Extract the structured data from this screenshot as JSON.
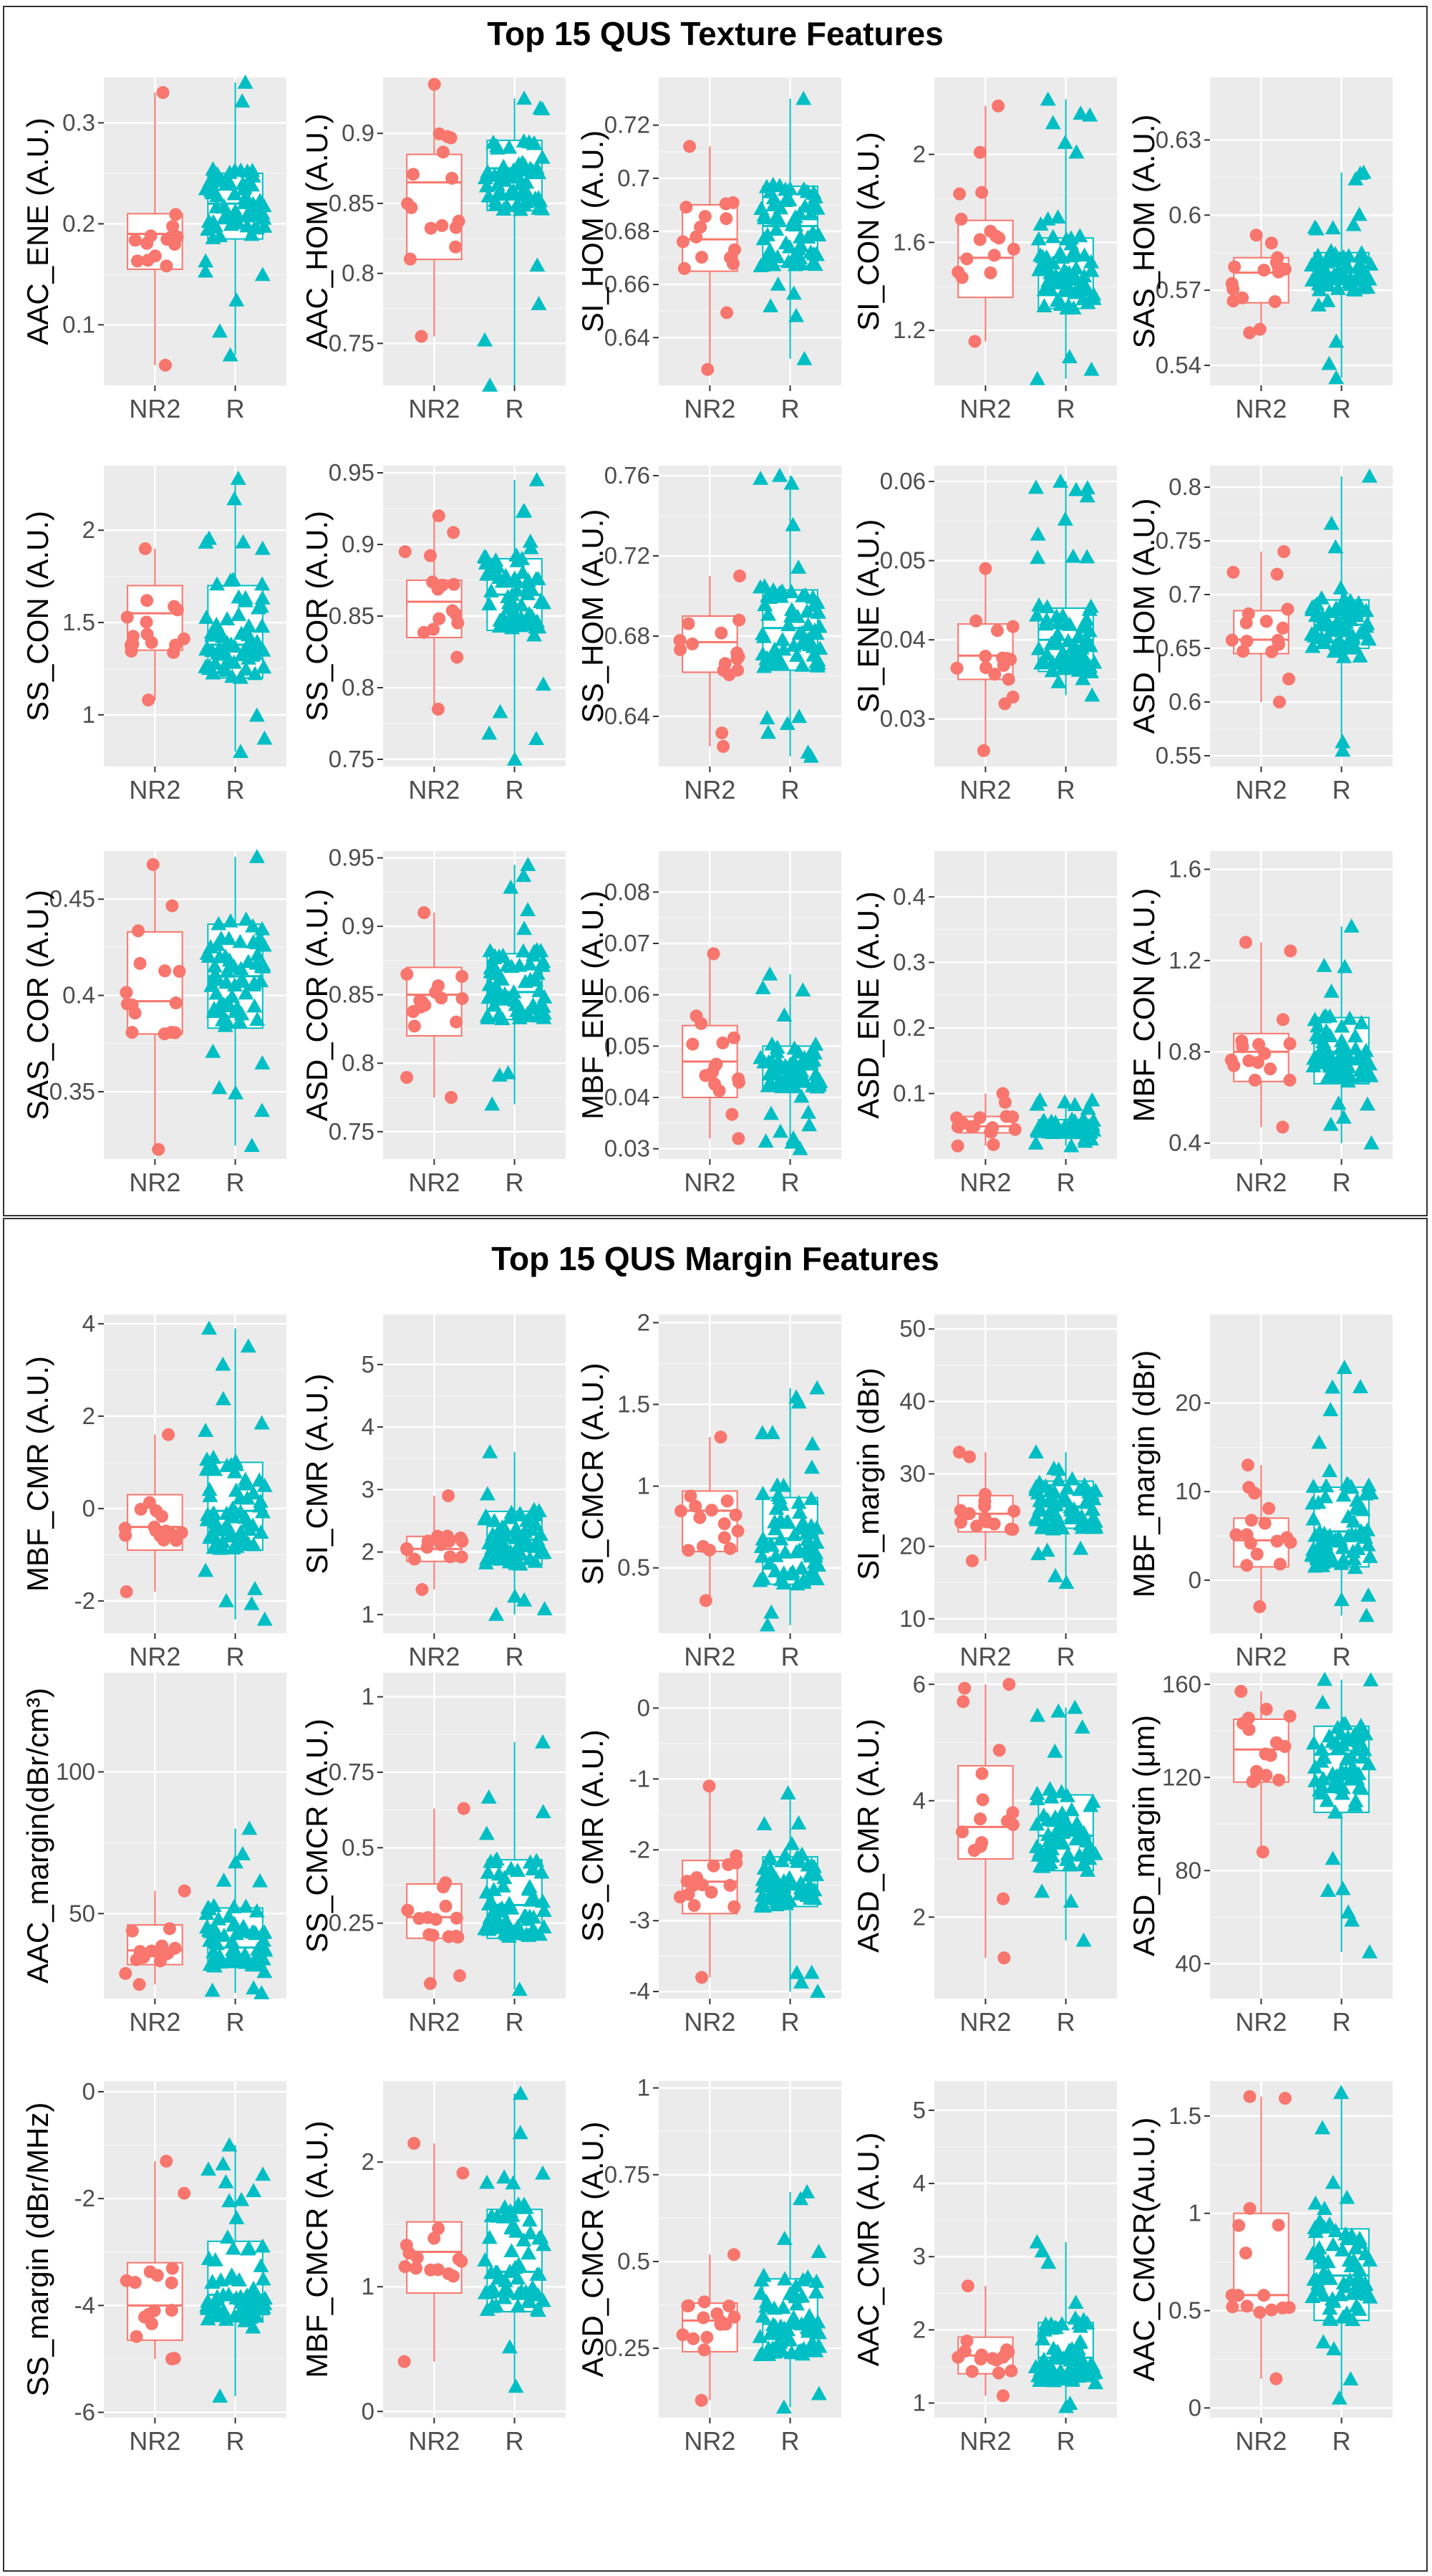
{
  "titles": {
    "texture": "Top 15 QUS Texture Features",
    "margin": "Top 15 QUS Margin Features"
  },
  "colors": {
    "NR2": "#F8766D",
    "R": "#00BFC4",
    "panel_bg": "#EBEBEB",
    "grid": "#FFFFFF"
  },
  "chart_data": [
    {
      "type": "box",
      "ylabel": "AAC_ENE (A.U.)",
      "categories": [
        "NR2",
        "R"
      ],
      "yticks": [
        0.1,
        0.2,
        0.3
      ],
      "ylim": [
        0.04,
        0.345
      ],
      "boxes": [
        {
          "group": "NR2",
          "min": 0.06,
          "q1": 0.155,
          "median": 0.19,
          "q3": 0.21,
          "max": 0.33
        },
        {
          "group": "R",
          "min": 0.07,
          "q1": 0.185,
          "median": 0.22,
          "q3": 0.25,
          "max": 0.34
        }
      ]
    },
    {
      "type": "box",
      "ylabel": "AAC_HOM (A.U.)",
      "categories": [
        "NR2",
        "R"
      ],
      "yticks": [
        0.75,
        0.8,
        0.85,
        0.9
      ],
      "ylim": [
        0.72,
        0.94
      ],
      "boxes": [
        {
          "group": "NR2",
          "min": 0.755,
          "q1": 0.81,
          "median": 0.865,
          "q3": 0.885,
          "max": 0.935
        },
        {
          "group": "R",
          "min": 0.72,
          "q1": 0.845,
          "median": 0.875,
          "q3": 0.895,
          "max": 0.925
        }
      ]
    },
    {
      "type": "box",
      "ylabel": "SI_HOM (A.U.)",
      "categories": [
        "NR2",
        "R"
      ],
      "yticks": [
        0.64,
        0.66,
        0.68,
        0.7,
        0.72
      ],
      "ylim": [
        0.622,
        0.738
      ],
      "boxes": [
        {
          "group": "NR2",
          "min": 0.628,
          "q1": 0.665,
          "median": 0.677,
          "q3": 0.69,
          "max": 0.712
        },
        {
          "group": "R",
          "min": 0.632,
          "q1": 0.667,
          "median": 0.682,
          "q3": 0.697,
          "max": 0.73
        }
      ]
    },
    {
      "type": "box",
      "ylabel": "SI_CON (A.U.)",
      "categories": [
        "NR2",
        "R"
      ],
      "yticks": [
        1.2,
        1.6,
        2.0
      ],
      "ylim": [
        0.95,
        2.35
      ],
      "boxes": [
        {
          "group": "NR2",
          "min": 1.15,
          "q1": 1.35,
          "median": 1.53,
          "q3": 1.7,
          "max": 2.22
        },
        {
          "group": "R",
          "min": 0.98,
          "q1": 1.3,
          "median": 1.46,
          "q3": 1.62,
          "max": 2.25
        }
      ]
    },
    {
      "type": "box",
      "ylabel": "SAS_HOM (A.U.)",
      "categories": [
        "NR2",
        "R"
      ],
      "yticks": [
        0.54,
        0.57,
        0.6,
        0.63
      ],
      "ylim": [
        0.532,
        0.655
      ],
      "boxes": [
        {
          "group": "NR2",
          "min": 0.553,
          "q1": 0.565,
          "median": 0.577,
          "q3": 0.583,
          "max": 0.592
        },
        {
          "group": "R",
          "min": 0.535,
          "q1": 0.57,
          "median": 0.577,
          "q3": 0.585,
          "max": 0.617
        }
      ]
    },
    {
      "type": "box",
      "ylabel": "SS_CON (A.U.)",
      "categories": [
        "NR2",
        "R"
      ],
      "yticks": [
        1.0,
        1.5,
        2.0
      ],
      "ylim": [
        0.72,
        2.35
      ],
      "boxes": [
        {
          "group": "NR2",
          "min": 1.08,
          "q1": 1.35,
          "median": 1.55,
          "q3": 1.7,
          "max": 1.9
        },
        {
          "group": "R",
          "min": 0.8,
          "q1": 1.2,
          "median": 1.38,
          "q3": 1.7,
          "max": 2.28
        }
      ]
    },
    {
      "type": "box",
      "ylabel": "SS_COR (A.U.)",
      "categories": [
        "NR2",
        "R"
      ],
      "yticks": [
        0.75,
        0.8,
        0.85,
        0.9,
        0.95
      ],
      "ylim": [
        0.745,
        0.955
      ],
      "boxes": [
        {
          "group": "NR2",
          "min": 0.785,
          "q1": 0.835,
          "median": 0.86,
          "q3": 0.875,
          "max": 0.92
        },
        {
          "group": "R",
          "min": 0.75,
          "q1": 0.84,
          "median": 0.865,
          "q3": 0.89,
          "max": 0.945
        }
      ]
    },
    {
      "type": "box",
      "ylabel": "SS_HOM (A.U.)",
      "categories": [
        "NR2",
        "R"
      ],
      "yticks": [
        0.64,
        0.68,
        0.72,
        0.76
      ],
      "ylim": [
        0.615,
        0.765
      ],
      "boxes": [
        {
          "group": "NR2",
          "min": 0.625,
          "q1": 0.662,
          "median": 0.677,
          "q3": 0.69,
          "max": 0.71
        },
        {
          "group": "R",
          "min": 0.62,
          "q1": 0.663,
          "median": 0.684,
          "q3": 0.703,
          "max": 0.76
        }
      ]
    },
    {
      "type": "box",
      "ylabel": "SI_ENE (A.U.)",
      "categories": [
        "NR2",
        "R"
      ],
      "yticks": [
        0.03,
        0.04,
        0.05,
        0.06
      ],
      "ylim": [
        0.024,
        0.062
      ],
      "boxes": [
        {
          "group": "NR2",
          "min": 0.026,
          "q1": 0.035,
          "median": 0.038,
          "q3": 0.042,
          "max": 0.049
        },
        {
          "group": "R",
          "min": 0.033,
          "q1": 0.036,
          "median": 0.04,
          "q3": 0.044,
          "max": 0.06
        }
      ]
    },
    {
      "type": "box",
      "ylabel": "ASD_HOM (A.U.)",
      "categories": [
        "NR2",
        "R"
      ],
      "yticks": [
        0.55,
        0.6,
        0.65,
        0.7,
        0.75,
        0.8
      ],
      "ylim": [
        0.54,
        0.82
      ],
      "boxes": [
        {
          "group": "NR2",
          "min": 0.6,
          "q1": 0.645,
          "median": 0.658,
          "q3": 0.685,
          "max": 0.74
        },
        {
          "group": "R",
          "min": 0.555,
          "q1": 0.65,
          "median": 0.672,
          "q3": 0.695,
          "max": 0.81
        }
      ]
    },
    {
      "type": "box",
      "ylabel": "SAS_COR (A.U.)",
      "categories": [
        "NR2",
        "R"
      ],
      "yticks": [
        0.35,
        0.4,
        0.45
      ],
      "ylim": [
        0.315,
        0.475
      ],
      "boxes": [
        {
          "group": "NR2",
          "min": 0.32,
          "q1": 0.38,
          "median": 0.397,
          "q3": 0.433,
          "max": 0.468
        },
        {
          "group": "R",
          "min": 0.322,
          "q1": 0.383,
          "median": 0.41,
          "q3": 0.437,
          "max": 0.472
        }
      ]
    },
    {
      "type": "box",
      "ylabel": "ASD_COR (A.U.)",
      "categories": [
        "NR2",
        "R"
      ],
      "yticks": [
        0.75,
        0.8,
        0.85,
        0.9,
        0.95
      ],
      "ylim": [
        0.73,
        0.955
      ],
      "boxes": [
        {
          "group": "NR2",
          "min": 0.775,
          "q1": 0.82,
          "median": 0.85,
          "q3": 0.87,
          "max": 0.91
        },
        {
          "group": "R",
          "min": 0.77,
          "q1": 0.832,
          "median": 0.852,
          "q3": 0.88,
          "max": 0.945
        }
      ]
    },
    {
      "type": "box",
      "ylabel": "MBF_ENE (A.U.)",
      "categories": [
        "NR2",
        "R"
      ],
      "yticks": [
        0.03,
        0.04,
        0.05,
        0.06,
        0.07,
        0.08
      ],
      "ylim": [
        0.028,
        0.088
      ],
      "boxes": [
        {
          "group": "NR2",
          "min": 0.032,
          "q1": 0.04,
          "median": 0.047,
          "q3": 0.054,
          "max": 0.068
        },
        {
          "group": "R",
          "min": 0.03,
          "q1": 0.042,
          "median": 0.046,
          "q3": 0.05,
          "max": 0.064
        }
      ]
    },
    {
      "type": "box",
      "ylabel": "ASD_ENE (A.U.)",
      "categories": [
        "NR2",
        "R"
      ],
      "yticks": [
        0.1,
        0.2,
        0.3,
        0.4
      ],
      "ylim": [
        0.0,
        0.47
      ],
      "boxes": [
        {
          "group": "NR2",
          "min": 0.02,
          "q1": 0.04,
          "median": 0.05,
          "q3": 0.065,
          "max": 0.1
        },
        {
          "group": "R",
          "min": 0.02,
          "q1": 0.04,
          "median": 0.047,
          "q3": 0.06,
          "max": 0.09
        }
      ]
    },
    {
      "type": "box",
      "ylabel": "MBF_CON (A.U.)",
      "categories": [
        "NR2",
        "R"
      ],
      "yticks": [
        0.4,
        0.8,
        1.2,
        1.6
      ],
      "ylim": [
        0.33,
        1.68
      ],
      "boxes": [
        {
          "group": "NR2",
          "min": 0.47,
          "q1": 0.67,
          "median": 0.8,
          "q3": 0.88,
          "max": 1.28
        },
        {
          "group": "R",
          "min": 0.4,
          "q1": 0.66,
          "median": 0.8,
          "q3": 0.95,
          "max": 1.35
        }
      ]
    },
    {
      "type": "box",
      "ylabel": "MBF_CMR (A.U.)",
      "categories": [
        "NR2",
        "R"
      ],
      "yticks": [
        -2,
        0,
        2,
        4
      ],
      "ylim": [
        -2.7,
        4.2
      ],
      "boxes": [
        {
          "group": "NR2",
          "min": -1.8,
          "q1": -0.9,
          "median": -0.4,
          "q3": 0.3,
          "max": 1.6
        },
        {
          "group": "R",
          "min": -2.4,
          "q1": -0.9,
          "median": -0.05,
          "q3": 1.0,
          "max": 3.9
        }
      ]
    },
    {
      "type": "box",
      "ylabel": "SI_CMR (A.U.)",
      "categories": [
        "NR2",
        "R"
      ],
      "yticks": [
        1,
        2,
        3,
        4,
        5
      ],
      "ylim": [
        0.7,
        5.8
      ],
      "boxes": [
        {
          "group": "NR2",
          "min": 1.4,
          "q1": 1.85,
          "median": 2.05,
          "q3": 2.25,
          "max": 2.9
        },
        {
          "group": "R",
          "min": 1.0,
          "q1": 1.8,
          "median": 2.2,
          "q3": 2.65,
          "max": 3.6
        }
      ]
    },
    {
      "type": "box",
      "ylabel": "SI_CMCR (A.U.)",
      "categories": [
        "NR2",
        "R"
      ],
      "yticks": [
        0.5,
        1.0,
        1.5,
        2.0
      ],
      "ylim": [
        0.1,
        2.05
      ],
      "boxes": [
        {
          "group": "NR2",
          "min": 0.3,
          "q1": 0.6,
          "median": 0.85,
          "q3": 0.97,
          "max": 1.3
        },
        {
          "group": "R",
          "min": 0.15,
          "q1": 0.4,
          "median": 0.68,
          "q3": 0.93,
          "max": 1.6
        }
      ]
    },
    {
      "type": "box",
      "ylabel": "SI_margin (dBr)",
      "categories": [
        "NR2",
        "R"
      ],
      "yticks": [
        10,
        20,
        30,
        40,
        50
      ],
      "ylim": [
        8,
        52
      ],
      "boxes": [
        {
          "group": "NR2",
          "min": 18,
          "q1": 22,
          "median": 24.5,
          "q3": 27,
          "max": 33
        },
        {
          "group": "R",
          "min": 15,
          "q1": 22.5,
          "median": 25.5,
          "q3": 29,
          "max": 33
        }
      ]
    },
    {
      "type": "box",
      "ylabel": "MBF_margin (dBr)",
      "categories": [
        "NR2",
        "R"
      ],
      "yticks": [
        0,
        10,
        20
      ],
      "ylim": [
        -6,
        30
      ],
      "boxes": [
        {
          "group": "NR2",
          "min": -3,
          "q1": 1.5,
          "median": 4.5,
          "q3": 7,
          "max": 13
        },
        {
          "group": "R",
          "min": -4,
          "q1": 1.5,
          "median": 5.5,
          "q3": 10.5,
          "max": 24
        }
      ]
    },
    {
      "type": "box",
      "ylabel": "AAC_margin(dBr/cm³)",
      "categories": [
        "NR2",
        "R"
      ],
      "yticks": [
        50,
        100
      ],
      "ylim": [
        20,
        135
      ],
      "boxes": [
        {
          "group": "NR2",
          "min": 25,
          "q1": 32,
          "median": 37,
          "q3": 46,
          "max": 58
        },
        {
          "group": "R",
          "min": 22,
          "q1": 31,
          "median": 38,
          "q3": 52,
          "max": 80
        }
      ]
    },
    {
      "type": "box",
      "ylabel": "SS_CMCR (A.U.)",
      "categories": [
        "NR2",
        "R"
      ],
      "yticks": [
        0.25,
        0.5,
        0.75,
        1.0
      ],
      "ylim": [
        0.0,
        1.08
      ],
      "boxes": [
        {
          "group": "NR2",
          "min": 0.05,
          "q1": 0.2,
          "median": 0.27,
          "q3": 0.38,
          "max": 0.63
        },
        {
          "group": "R",
          "min": 0.03,
          "q1": 0.2,
          "median": 0.31,
          "q3": 0.46,
          "max": 0.85
        }
      ]
    },
    {
      "type": "box",
      "ylabel": "SS_CMR (A.U.)",
      "categories": [
        "NR2",
        "R"
      ],
      "yticks": [
        -4,
        -3,
        -2,
        -1,
        0
      ],
      "ylim": [
        -4.1,
        0.5
      ],
      "boxes": [
        {
          "group": "NR2",
          "min": -3.8,
          "q1": -2.9,
          "median": -2.45,
          "q3": -2.15,
          "max": -1.1
        },
        {
          "group": "R",
          "min": -4.0,
          "q1": -2.8,
          "median": -2.5,
          "q3": -2.1,
          "max": -1.2
        }
      ]
    },
    {
      "type": "box",
      "ylabel": "ASD_CMR (A.U.)",
      "categories": [
        "NR2",
        "R"
      ],
      "yticks": [
        2,
        4,
        6
      ],
      "ylim": [
        0.6,
        6.2
      ],
      "boxes": [
        {
          "group": "NR2",
          "min": 1.3,
          "q1": 3.0,
          "median": 3.55,
          "q3": 4.6,
          "max": 6.0
        },
        {
          "group": "R",
          "min": 1.6,
          "q1": 2.8,
          "median": 3.4,
          "q3": 4.1,
          "max": 5.6
        }
      ]
    },
    {
      "type": "box",
      "ylabel": "ASD_margin (μm)",
      "categories": [
        "NR2",
        "R"
      ],
      "yticks": [
        40,
        80,
        120,
        160
      ],
      "ylim": [
        25,
        165
      ],
      "boxes": [
        {
          "group": "NR2",
          "min": 88,
          "q1": 118,
          "median": 132,
          "q3": 145,
          "max": 157
        },
        {
          "group": "R",
          "min": 45,
          "q1": 105,
          "median": 130,
          "q3": 142,
          "max": 162
        }
      ]
    },
    {
      "type": "box",
      "ylabel": "SS_margin (dBr/MHz)",
      "categories": [
        "NR2",
        "R"
      ],
      "yticks": [
        -6,
        -4,
        -2,
        0
      ],
      "ylim": [
        -6.1,
        0.2
      ],
      "boxes": [
        {
          "group": "NR2",
          "min": -5.0,
          "q1": -4.65,
          "median": -4.0,
          "q3": -3.2,
          "max": -1.3
        },
        {
          "group": "R",
          "min": -5.7,
          "q1": -4.3,
          "median": -3.8,
          "q3": -2.8,
          "max": -1.0
        }
      ]
    },
    {
      "type": "box",
      "ylabel": "MBF_CMCR (A.U.)",
      "categories": [
        "NR2",
        "R"
      ],
      "yticks": [
        0,
        1,
        2
      ],
      "ylim": [
        -0.05,
        2.65
      ],
      "boxes": [
        {
          "group": "NR2",
          "min": 0.4,
          "q1": 0.95,
          "median": 1.28,
          "q3": 1.52,
          "max": 2.15
        },
        {
          "group": "R",
          "min": 0.2,
          "q1": 0.8,
          "median": 1.12,
          "q3": 1.62,
          "max": 2.55
        }
      ]
    },
    {
      "type": "box",
      "ylabel": "ASD_CMCR (A.U.)",
      "categories": [
        "NR2",
        "R"
      ],
      "yticks": [
        0.25,
        0.5,
        0.75,
        1.0
      ],
      "ylim": [
        0.05,
        1.02
      ],
      "boxes": [
        {
          "group": "NR2",
          "min": 0.1,
          "q1": 0.24,
          "median": 0.33,
          "q3": 0.38,
          "max": 0.52
        },
        {
          "group": "R",
          "min": 0.08,
          "q1": 0.23,
          "median": 0.32,
          "q3": 0.45,
          "max": 0.7
        }
      ]
    },
    {
      "type": "box",
      "ylabel": "AAC_CMR (A.U.)",
      "categories": [
        "NR2",
        "R"
      ],
      "yticks": [
        1,
        2,
        3,
        4,
        5
      ],
      "ylim": [
        0.8,
        5.4
      ],
      "boxes": [
        {
          "group": "NR2",
          "min": 1.1,
          "q1": 1.4,
          "median": 1.65,
          "q3": 1.9,
          "max": 2.6
        },
        {
          "group": "R",
          "min": 0.95,
          "q1": 1.3,
          "median": 1.62,
          "q3": 2.1,
          "max": 3.2
        }
      ]
    },
    {
      "type": "box",
      "ylabel": "AAC_CMCR(Au.U.)",
      "categories": [
        "NR2",
        "R"
      ],
      "yticks": [
        0.0,
        0.5,
        1.0,
        1.5
      ],
      "ylim": [
        -0.05,
        1.68
      ],
      "boxes": [
        {
          "group": "NR2",
          "min": 0.15,
          "q1": 0.5,
          "median": 0.58,
          "q3": 1.0,
          "max": 1.6
        },
        {
          "group": "R",
          "min": 0.05,
          "q1": 0.45,
          "median": 0.68,
          "q3": 0.92,
          "max": 1.62
        }
      ]
    }
  ]
}
